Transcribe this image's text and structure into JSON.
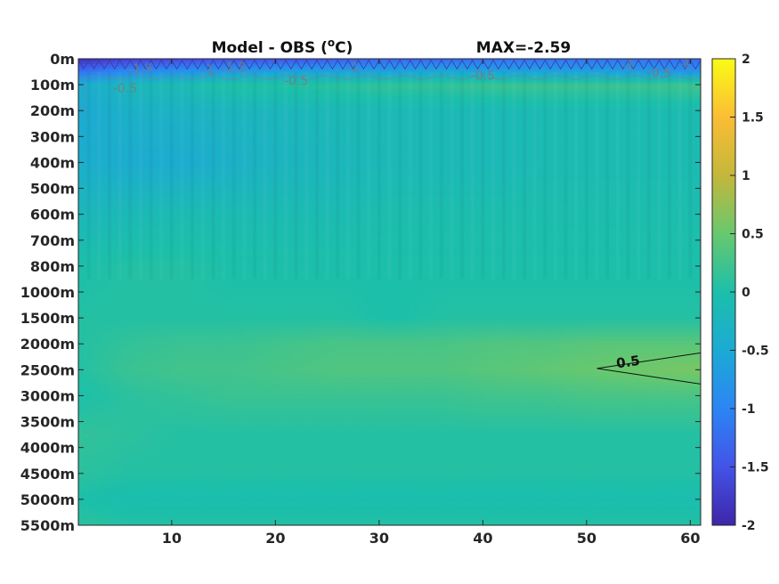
{
  "chart_data": {
    "type": "heatmap",
    "title_left": "Model - OBS (",
    "title_sup": "o",
    "title_unit": "C)",
    "title_right": "MAX=-2.59",
    "xlabel": "",
    "ylabel": "",
    "x_ticks": [
      10,
      20,
      30,
      40,
      50,
      60
    ],
    "x_range": [
      1,
      61
    ],
    "y_tick_labels": [
      "0m",
      "100m",
      "200m",
      "300m",
      "400m",
      "500m",
      "600m",
      "700m",
      "800m",
      "1000m",
      "1500m",
      "2000m",
      "2500m",
      "3000m",
      "3500m",
      "4000m",
      "4500m",
      "5000m",
      "5500m"
    ],
    "colorbar": {
      "range": [
        -2,
        2
      ],
      "ticks": [
        "2",
        "1.5",
        "1",
        "0.5",
        "0",
        "-0.5",
        "-1",
        "-1.5",
        "-2"
      ],
      "colormap": "parula",
      "stops": [
        "#3e26a8",
        "#4353e8",
        "#2c85f4",
        "#1caad4",
        "#1cbfaa",
        "#68c86e",
        "#c4b73b",
        "#fbbd35",
        "#f9fb15"
      ]
    },
    "contour_labels": [
      {
        "text": "-1.5",
        "x": 7.0,
        "depth_index": 0.35
      },
      {
        "text": "-1.5",
        "x": 16.0,
        "depth_index": 0.3
      },
      {
        "text": "-1",
        "x": 13.5,
        "depth_index": 0.4
      },
      {
        "text": "-0.5",
        "x": 5.5,
        "depth_index": 1.1
      },
      {
        "text": "-0.5",
        "x": 22.0,
        "depth_index": 0.8
      },
      {
        "text": "-1",
        "x": 27.5,
        "depth_index": 0.3
      },
      {
        "text": "-0.5",
        "x": 40.0,
        "depth_index": 0.6
      },
      {
        "text": "-0.5",
        "x": 57.0,
        "depth_index": 0.5
      },
      {
        "text": "-1",
        "x": 54.0,
        "depth_index": 0.2
      },
      {
        "text": "-1",
        "x": 59.5,
        "depth_index": 0.15
      }
    ],
    "positive_contour": {
      "text": "0.5",
      "x": 54.0,
      "depth_index": 11.7
    },
    "field_rows": [
      {
        "depth_index": 0.0,
        "values": [
          -1.9,
          -1.7,
          -1.6,
          -1.5,
          -1.5,
          -1.4,
          -1.3,
          -1.3,
          -1.2,
          -1.2,
          -1.2,
          -1.2,
          -1.3
        ]
      },
      {
        "depth_index": 0.5,
        "values": [
          -1.2,
          -0.9,
          -0.8,
          -0.7,
          -0.6,
          -0.6,
          -0.6,
          -0.5,
          -0.6,
          -0.6,
          -0.6,
          -0.7,
          -0.8
        ]
      },
      {
        "depth_index": 1.0,
        "values": [
          -0.45,
          -0.2,
          -0.1,
          0.05,
          0.05,
          0.1,
          0.15,
          0.15,
          0.2,
          0.2,
          0.2,
          0.2,
          0.25
        ]
      },
      {
        "depth_index": 2.0,
        "values": [
          -0.5,
          -0.35,
          -0.3,
          -0.25,
          -0.2,
          -0.15,
          -0.15,
          -0.15,
          -0.15,
          -0.1,
          -0.1,
          -0.1,
          -0.1
        ]
      },
      {
        "depth_index": 4.0,
        "values": [
          -0.4,
          -0.45,
          -0.45,
          -0.35,
          -0.25,
          -0.2,
          -0.15,
          -0.15,
          -0.15,
          -0.1,
          -0.1,
          -0.1,
          -0.1
        ]
      },
      {
        "depth_index": 6.0,
        "values": [
          -0.2,
          -0.15,
          -0.1,
          -0.1,
          -0.1,
          -0.1,
          -0.05,
          -0.05,
          -0.05,
          -0.05,
          -0.05,
          -0.05,
          -0.05
        ]
      },
      {
        "depth_index": 8.0,
        "values": [
          0.0,
          0.05,
          0.05,
          0.0,
          0.0,
          0.0,
          0.0,
          0.0,
          0.0,
          0.0,
          0.0,
          0.0,
          0.0
        ]
      },
      {
        "depth_index": 10.0,
        "values": [
          0.05,
          0.05,
          0.05,
          0.05,
          0.05,
          0.05,
          0.0,
          0.05,
          0.05,
          0.05,
          0.05,
          0.05,
          0.05
        ]
      },
      {
        "depth_index": 11.0,
        "values": [
          0.05,
          0.15,
          0.2,
          0.2,
          0.25,
          0.3,
          0.3,
          0.3,
          0.35,
          0.35,
          0.4,
          0.4,
          0.4
        ]
      },
      {
        "depth_index": 12.0,
        "values": [
          0.05,
          0.2,
          0.25,
          0.25,
          0.3,
          0.35,
          0.35,
          0.35,
          0.4,
          0.45,
          0.5,
          0.55,
          0.6
        ]
      },
      {
        "depth_index": 13.0,
        "values": [
          0.0,
          0.1,
          0.15,
          0.2,
          0.2,
          0.2,
          0.2,
          0.2,
          0.25,
          0.25,
          0.3,
          0.3,
          0.3
        ]
      },
      {
        "depth_index": 14.5,
        "values": [
          0.15,
          0.1,
          0.05,
          0.05,
          0.05,
          0.05,
          0.05,
          0.05,
          0.05,
          0.05,
          0.05,
          0.05,
          0.05
        ]
      },
      {
        "depth_index": 16.0,
        "values": [
          0.1,
          0.05,
          0.05,
          0.05,
          0.05,
          0.05,
          0.05,
          0.05,
          0.05,
          0.05,
          0.05,
          0.05,
          0.05
        ]
      },
      {
        "depth_index": 17.0,
        "values": [
          0.0,
          -0.05,
          -0.05,
          -0.05,
          -0.05,
          -0.05,
          -0.05,
          -0.05,
          -0.05,
          -0.05,
          -0.05,
          -0.05,
          -0.05
        ]
      },
      {
        "depth_index": 18.0,
        "values": [
          0.1,
          0.05,
          0.05,
          0.05,
          0.05,
          0.05,
          0.05,
          0.05,
          0.05,
          0.05,
          0.05,
          0.05,
          0.05
        ]
      }
    ],
    "field_columns_x": [
      1,
      6,
      11,
      16,
      21,
      26,
      31,
      36,
      41,
      46,
      51,
      56,
      61
    ]
  }
}
